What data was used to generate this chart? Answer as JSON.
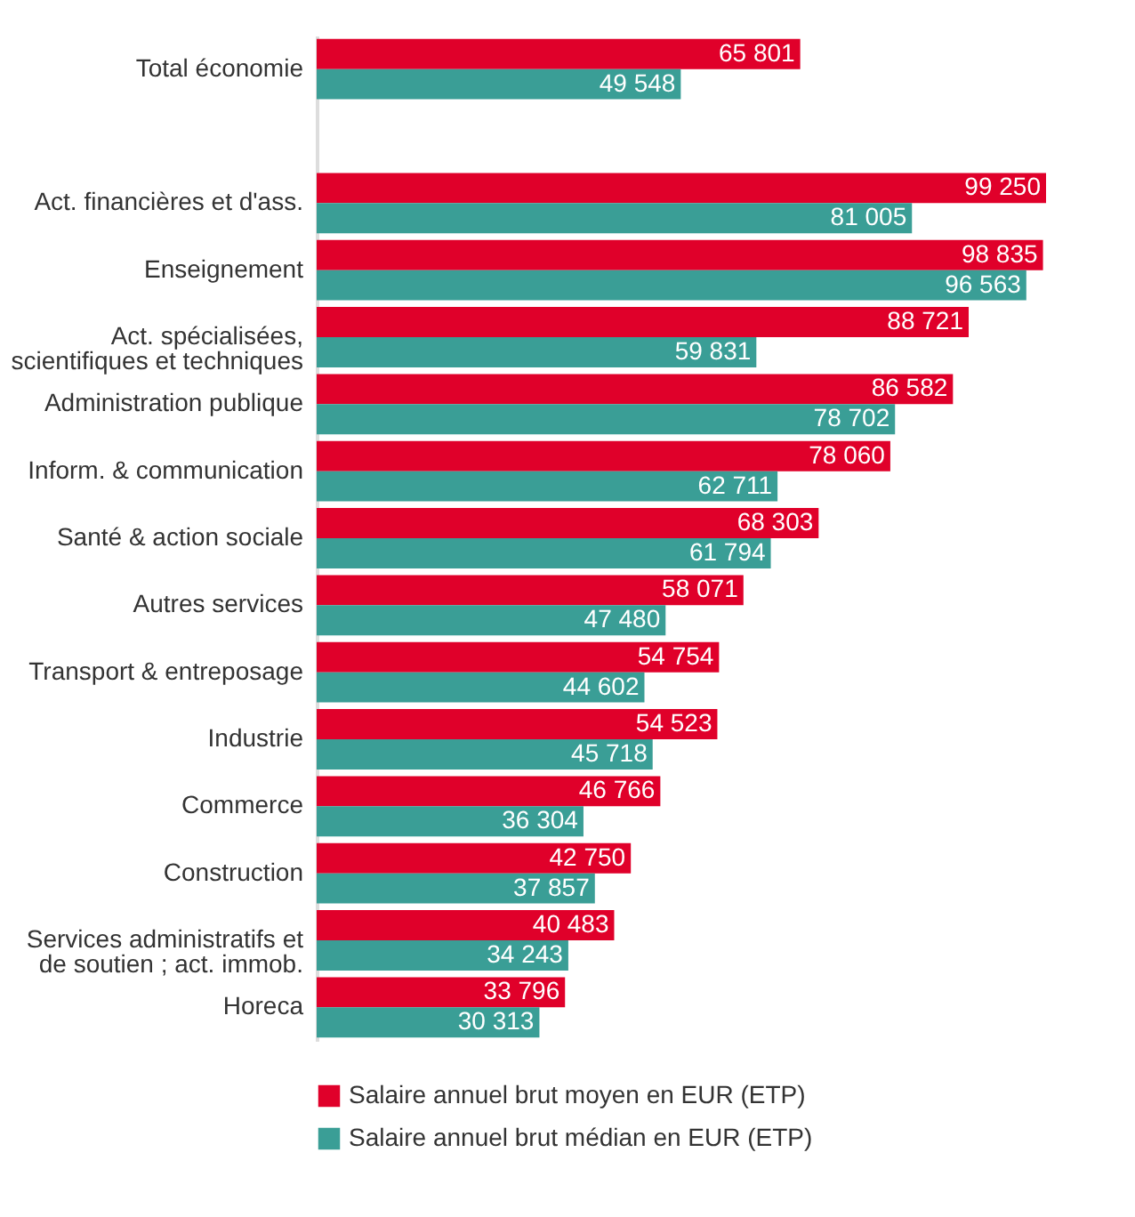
{
  "chart_data": {
    "type": "bar",
    "orientation": "horizontal",
    "data_labels": true,
    "legend": "bottom",
    "categories": [
      "Total économie",
      null,
      "Act. financières et d'ass.",
      "Enseignement",
      "Act. spécialisées, scientifiques et techniques",
      "Administration publique",
      "Inform. & communication",
      "Santé & action sociale",
      "Autres services",
      "Transport & entreposage",
      "Industrie",
      "Commerce",
      "Construction",
      "Services administratifs et de soutien ; act. immob.",
      "Horeca"
    ],
    "series": [
      {
        "name": "Salaire annuel brut moyen en EUR (ETP)",
        "color": "#e0002a",
        "values": [
          65801,
          null,
          99250,
          98835,
          88721,
          86582,
          78060,
          68303,
          58071,
          54754,
          54523,
          46766,
          42750,
          40483,
          33796
        ]
      },
      {
        "name": "Salaire annuel brut médian en EUR (ETP)",
        "color": "#3a9e96",
        "values": [
          49548,
          null,
          81005,
          96563,
          59831,
          78702,
          62711,
          61794,
          47480,
          44602,
          45718,
          36304,
          37857,
          34243,
          30313
        ]
      }
    ]
  }
}
